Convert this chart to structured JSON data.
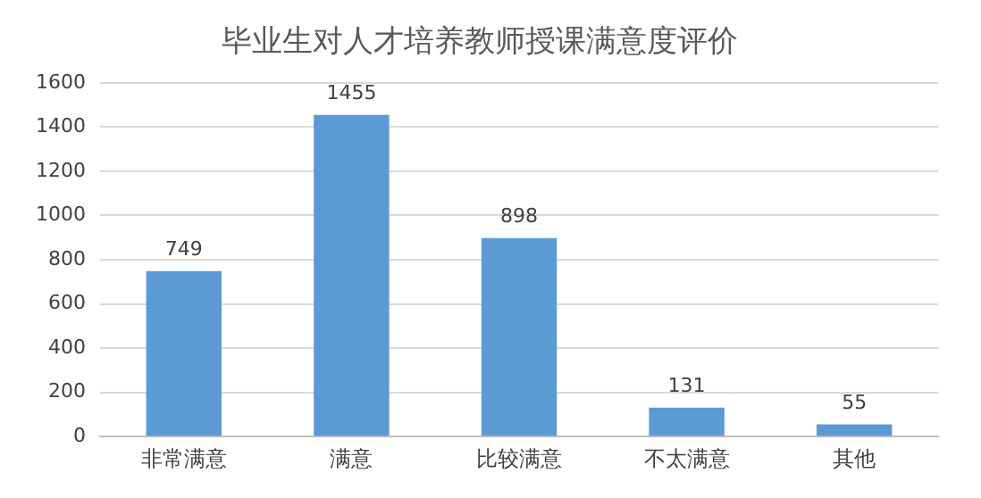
{
  "chart_data": {
    "type": "bar",
    "title": "毕业生对人才培养教师授课满意度评价",
    "categories": [
      "非常满意",
      "满意",
      "比较满意",
      "不太满意",
      "其他"
    ],
    "values": [
      749,
      1455,
      898,
      131,
      55
    ],
    "color": "#5b9bd5",
    "ylim": [
      0,
      1600
    ],
    "yticks": [
      0,
      200,
      400,
      600,
      800,
      1000,
      1200,
      1400,
      1600
    ],
    "grid": "y",
    "legend": false,
    "data_labels": true
  }
}
